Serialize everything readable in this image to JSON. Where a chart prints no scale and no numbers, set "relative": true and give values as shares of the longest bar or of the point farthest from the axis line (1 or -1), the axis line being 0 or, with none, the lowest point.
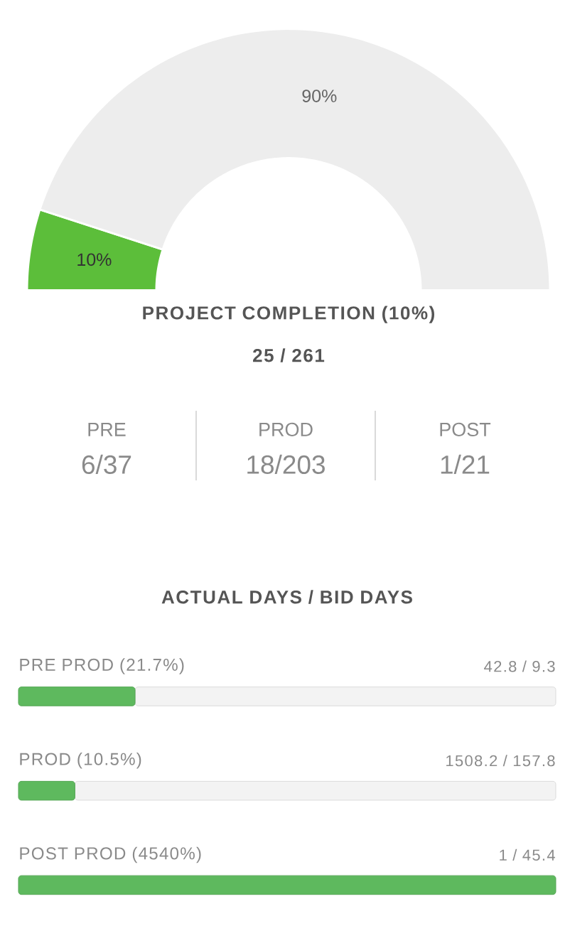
{
  "chart_data": [
    {
      "type": "donut",
      "title": "PROJECT COMPLETION (10%)",
      "subtitle": "25 / 261",
      "categories": [
        null,
        null
      ],
      "values": [
        10,
        90
      ],
      "colors": [
        "#5cbe3a",
        "#ededed"
      ],
      "value_labels": [
        "10%",
        "90%"
      ]
    },
    {
      "type": "other",
      "categories": [
        "PRE",
        "PROD",
        "POST"
      ],
      "value_labels": [
        "6/37",
        "18/203",
        "1/21"
      ]
    },
    {
      "type": "bar",
      "title": "ACTUAL DAYS / BID DAYS",
      "orientation": "horizontal",
      "stacked": true,
      "relative": true,
      "categories": [
        "PRE PROD (21.7%)",
        "PROD (10.5%)",
        "POST PROD (4540%)"
      ],
      "series": [
        {
          "color": "#5eb95e",
          "values": [
            0.217,
            0.105,
            1
          ]
        },
        {
          "color": "#f3f3f3",
          "values": [
            0.783,
            0.895,
            null
          ]
        }
      ],
      "value_labels": [
        "42.8 / 9.3",
        "1508.2 / 157.8",
        "1 / 45.4"
      ]
    }
  ]
}
